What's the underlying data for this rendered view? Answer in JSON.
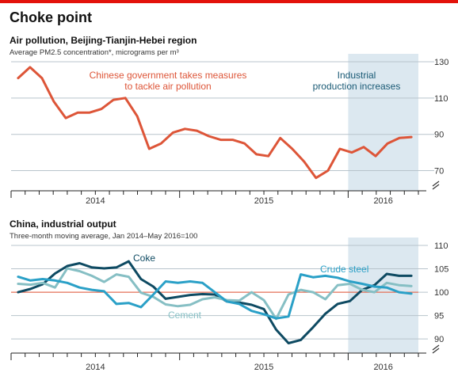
{
  "title": "Choke point",
  "colors": {
    "accent_red": "#e3120b",
    "pollution": "#dd5538",
    "reference_line": "#e8735a",
    "coke": "#0e4a62",
    "cement": "#86bfc4",
    "crude_steel": "#2aa0c7",
    "shade": "#dce8f0"
  },
  "chart_data": [
    {
      "type": "line",
      "title": "Air pollution, Beijing-Tianjin-Hebei region",
      "subtitle": "Average PM2.5 concentration*, micrograms per m³",
      "x_labels": [
        "2014",
        "2015",
        "2016"
      ],
      "y_ticks": [
        70,
        90,
        110,
        130
      ],
      "ylim": [
        65,
        130
      ],
      "y_axis_break": true,
      "period": "monthly, Jan 2014 to May 2016",
      "grid": true,
      "shaded_period": "Jan 2016 onwards",
      "annotations": [
        {
          "lines": [
            "Chinese government takes measures",
            "to tackle air pollution"
          ],
          "color": "#dd5538"
        },
        {
          "lines": [
            "Industrial",
            "production increases"
          ],
          "color": "#1a5a75"
        }
      ],
      "series": [
        {
          "name": "",
          "color": "#dd5538",
          "values": [
            121,
            127,
            121,
            108,
            99,
            102,
            102,
            104,
            109,
            110,
            100,
            82,
            85,
            91,
            93,
            92,
            89,
            87,
            87,
            85,
            79,
            78,
            88,
            82,
            75,
            66,
            70,
            82,
            80,
            83,
            78,
            85,
            88,
            88.5
          ]
        }
      ]
    },
    {
      "type": "line",
      "title": "China, industrial output",
      "subtitle": "Three-month moving average, Jan 2014–May 2016=100",
      "x_labels": [
        "2014",
        "2015",
        "2016"
      ],
      "y_ticks": [
        90,
        95,
        100,
        105,
        110
      ],
      "ylim": [
        88,
        110
      ],
      "y_axis_break": true,
      "reference_value": 100,
      "grid": true,
      "shaded_period": "Jan 2016 onwards",
      "series": [
        {
          "name": "Coke",
          "color": "#0e4a62",
          "values": [
            100,
            100.7,
            101.7,
            104,
            105.6,
            106.2,
            105.3,
            105.1,
            105.3,
            106.6,
            102.8,
            101.2,
            98.6,
            99,
            99.4,
            99.6,
            99.5,
            98,
            97.8,
            97.3,
            96.4,
            92,
            89.1,
            89.8,
            92.5,
            95.4,
            97.5,
            98.1,
            100.5,
            101.5,
            103.9,
            103.5,
            103.5
          ]
        },
        {
          "name": "Cement",
          "color": "#86bfc4",
          "values": [
            101.8,
            101.6,
            102,
            101,
            105.1,
            104.5,
            103.5,
            102.2,
            103.8,
            103.3,
            99.9,
            99,
            97.4,
            97,
            97.3,
            98.5,
            98.9,
            98.3,
            98.2,
            100,
            98.3,
            94.3,
            99.5,
            100.5,
            100,
            98.5,
            101.5,
            101.8,
            100.5,
            100,
            102,
            101.5,
            101.3
          ]
        },
        {
          "name": "Crude steel",
          "color": "#2aa0c7",
          "values": [
            103.3,
            102.5,
            102.8,
            102.5,
            102,
            101,
            100.5,
            100.2,
            97.5,
            97.7,
            96.8,
            99.5,
            102.3,
            102,
            102.3,
            102,
            100,
            98,
            97.5,
            96,
            95.3,
            94.4,
            94.8,
            103.8,
            103.2,
            103.5,
            103.1,
            102.3,
            101.8,
            101.2,
            101,
            100,
            99.7
          ]
        }
      ]
    }
  ]
}
